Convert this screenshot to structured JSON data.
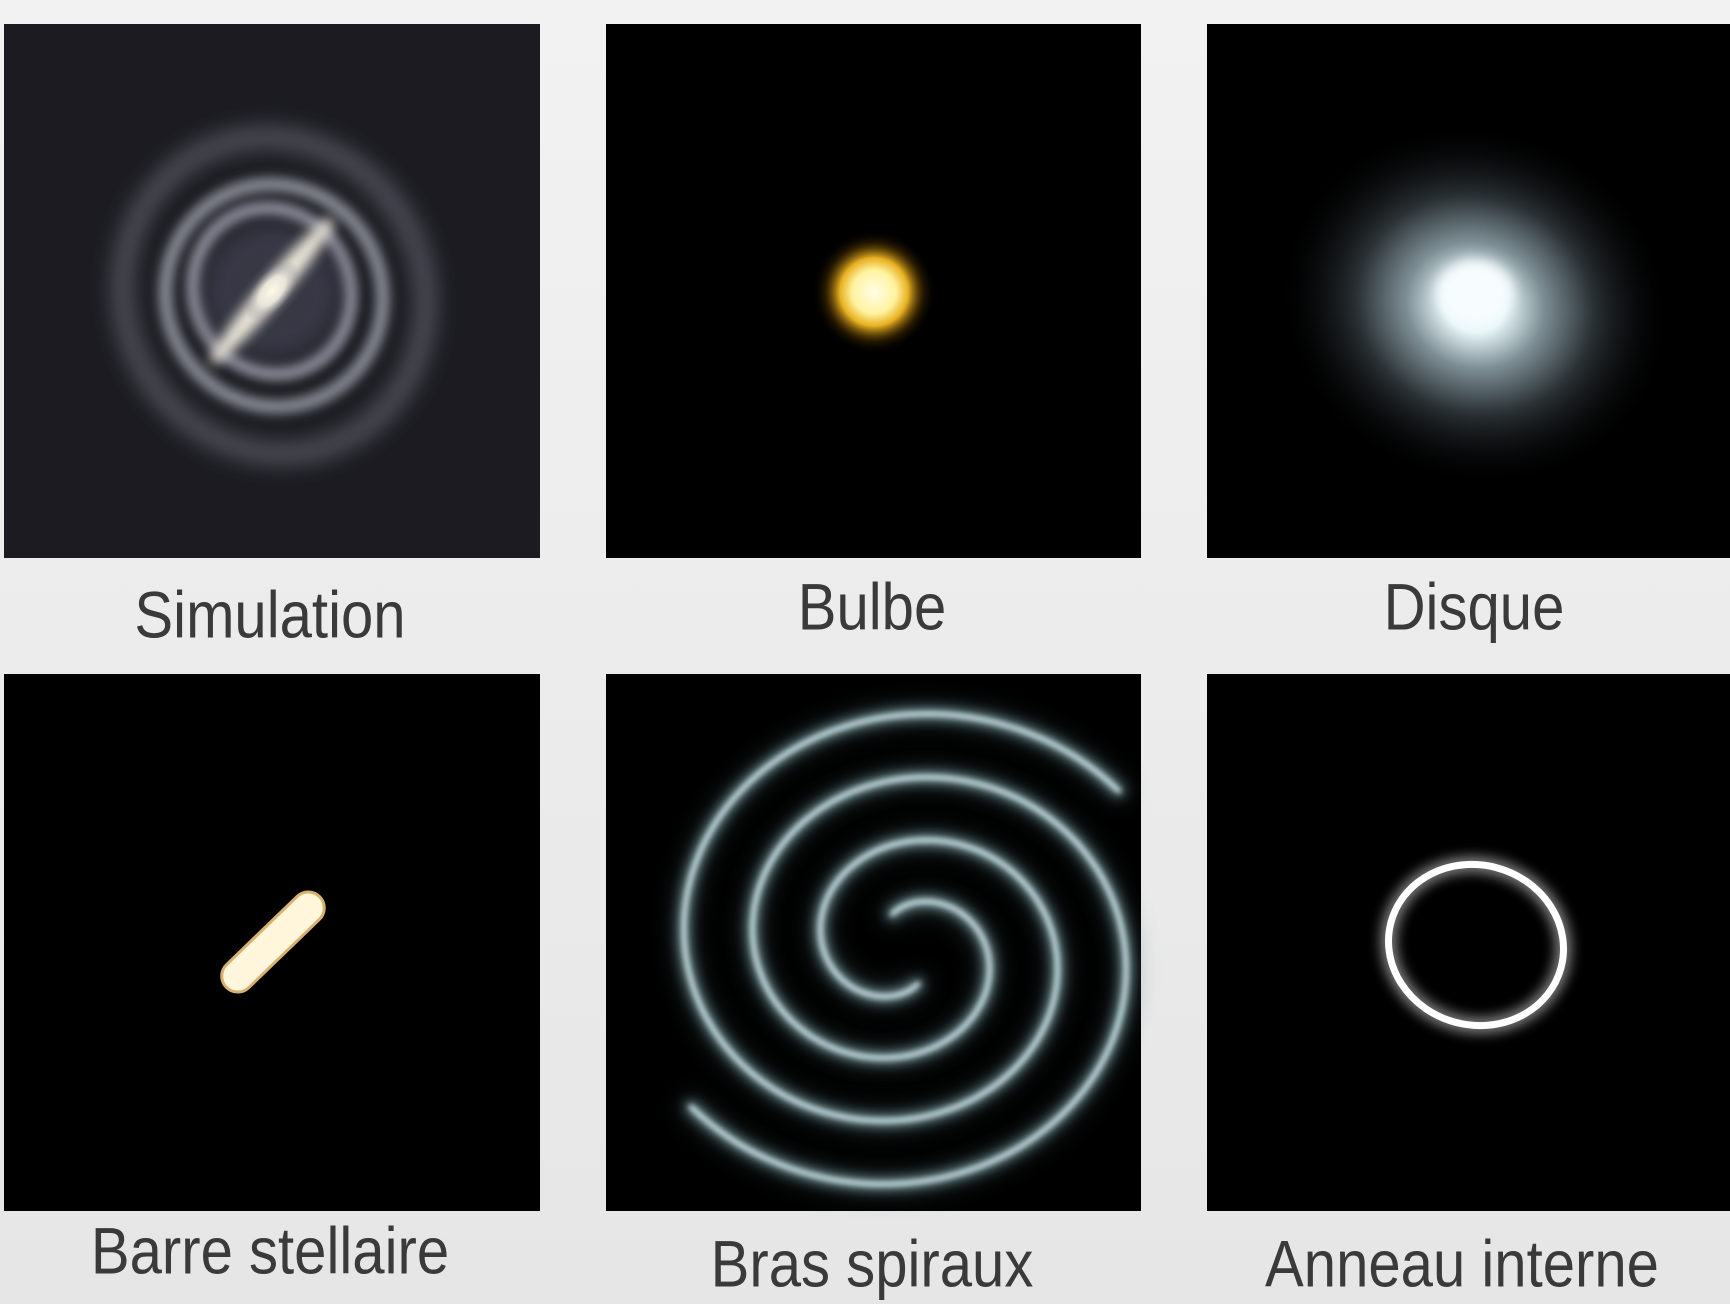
{
  "panels": [
    {
      "label": "Simulation"
    },
    {
      "label": "Bulbe"
    },
    {
      "label": "Disque"
    },
    {
      "label": "Barre stellaire"
    },
    {
      "label": "Bras spiraux"
    },
    {
      "label": "Anneau interne"
    }
  ]
}
